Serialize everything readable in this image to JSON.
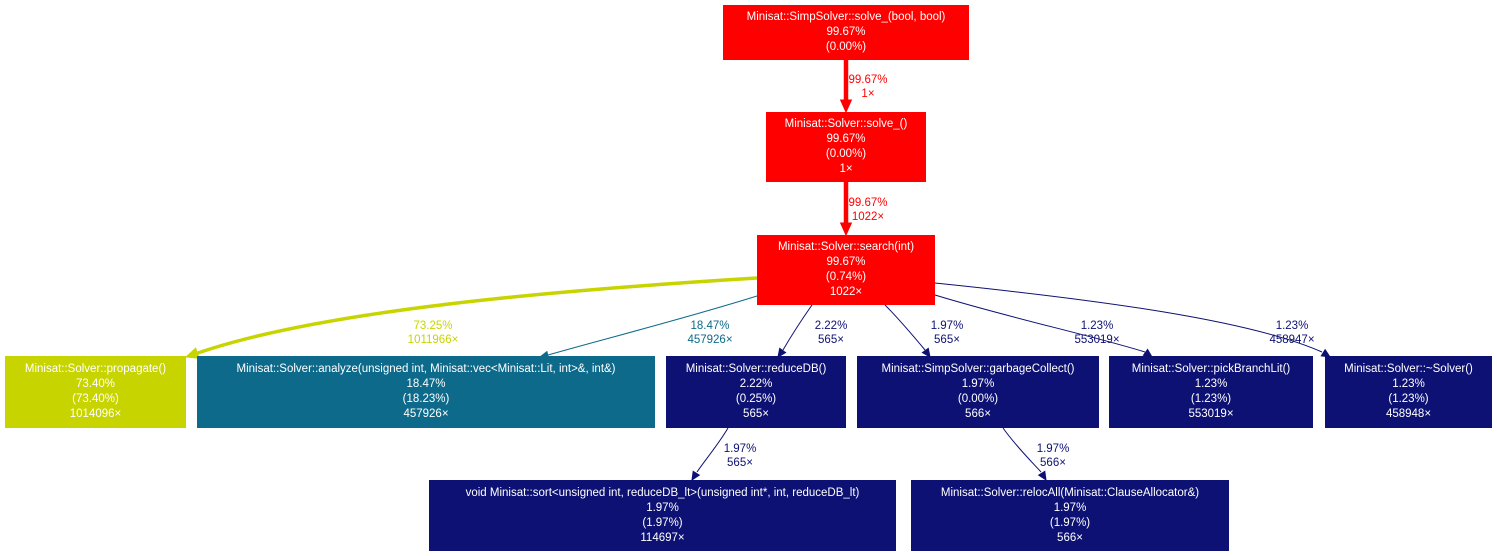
{
  "nodes": [
    {
      "id": "solve_bool",
      "name": "Minisat::SimpSolver::solve_(bool, bool)",
      "total": "99.67%",
      "self": "(0.00%)",
      "calls": "",
      "color": "#ff0000"
    },
    {
      "id": "solve",
      "name": "Minisat::Solver::solve_()",
      "total": "99.67%",
      "self": "(0.00%)",
      "calls": "1×",
      "color": "#ff0000"
    },
    {
      "id": "search",
      "name": "Minisat::Solver::search(int)",
      "total": "99.67%",
      "self": "(0.74%)",
      "calls": "1022×",
      "color": "#ff0000"
    },
    {
      "id": "propagate",
      "name": "Minisat::Solver::propagate()",
      "total": "73.40%",
      "self": "(73.40%)",
      "calls": "1014096×",
      "color": "#c8d400"
    },
    {
      "id": "analyze",
      "name": "Minisat::Solver::analyze(unsigned int, Minisat::vec<Minisat::Lit, int>&, int&)",
      "total": "18.47%",
      "self": "(18.23%)",
      "calls": "457926×",
      "color": "#0d6a8a"
    },
    {
      "id": "reducedb",
      "name": "Minisat::Solver::reduceDB()",
      "total": "2.22%",
      "self": "(0.25%)",
      "calls": "565×",
      "color": "#0d1173"
    },
    {
      "id": "gc",
      "name": "Minisat::SimpSolver::garbageCollect()",
      "total": "1.97%",
      "self": "(0.00%)",
      "calls": "566×",
      "color": "#0d1173"
    },
    {
      "id": "pick",
      "name": "Minisat::Solver::pickBranchLit()",
      "total": "1.23%",
      "self": "(1.23%)",
      "calls": "553019×",
      "color": "#0d1173"
    },
    {
      "id": "dtor",
      "name": "Minisat::Solver::~Solver()",
      "total": "1.23%",
      "self": "(1.23%)",
      "calls": "458948×",
      "color": "#0d1173"
    },
    {
      "id": "sort",
      "name": "void Minisat::sort<unsigned int, reduceDB_lt>(unsigned int*, int, reduceDB_lt)",
      "total": "1.97%",
      "self": "(1.97%)",
      "calls": "114697×",
      "color": "#0d1173"
    },
    {
      "id": "reloc",
      "name": "Minisat::Solver::relocAll(Minisat::ClauseAllocator&)",
      "total": "1.97%",
      "self": "(1.97%)",
      "calls": "566×",
      "color": "#0d1173"
    }
  ],
  "edges": [
    {
      "from": "solve_bool",
      "to": "solve",
      "pct": "99.67%",
      "calls": "1×",
      "color": "#ff0000"
    },
    {
      "from": "solve",
      "to": "search",
      "pct": "99.67%",
      "calls": "1022×",
      "color": "#ff0000"
    },
    {
      "from": "search",
      "to": "propagate",
      "pct": "73.25%",
      "calls": "1011966×",
      "color": "#c8d400"
    },
    {
      "from": "search",
      "to": "analyze",
      "pct": "18.47%",
      "calls": "457926×",
      "color": "#0d6a8a"
    },
    {
      "from": "search",
      "to": "reducedb",
      "pct": "2.22%",
      "calls": "565×",
      "color": "#0d1173"
    },
    {
      "from": "search",
      "to": "gc",
      "pct": "1.97%",
      "calls": "565×",
      "color": "#0d1173"
    },
    {
      "from": "search",
      "to": "pick",
      "pct": "1.23%",
      "calls": "553019×",
      "color": "#0d1173"
    },
    {
      "from": "search",
      "to": "dtor",
      "pct": "1.23%",
      "calls": "458947×",
      "color": "#0d1173"
    },
    {
      "from": "reducedb",
      "to": "sort",
      "pct": "1.97%",
      "calls": "565×",
      "color": "#0d1173"
    },
    {
      "from": "gc",
      "to": "reloc",
      "pct": "1.97%",
      "calls": "566×",
      "color": "#0d1173"
    }
  ]
}
